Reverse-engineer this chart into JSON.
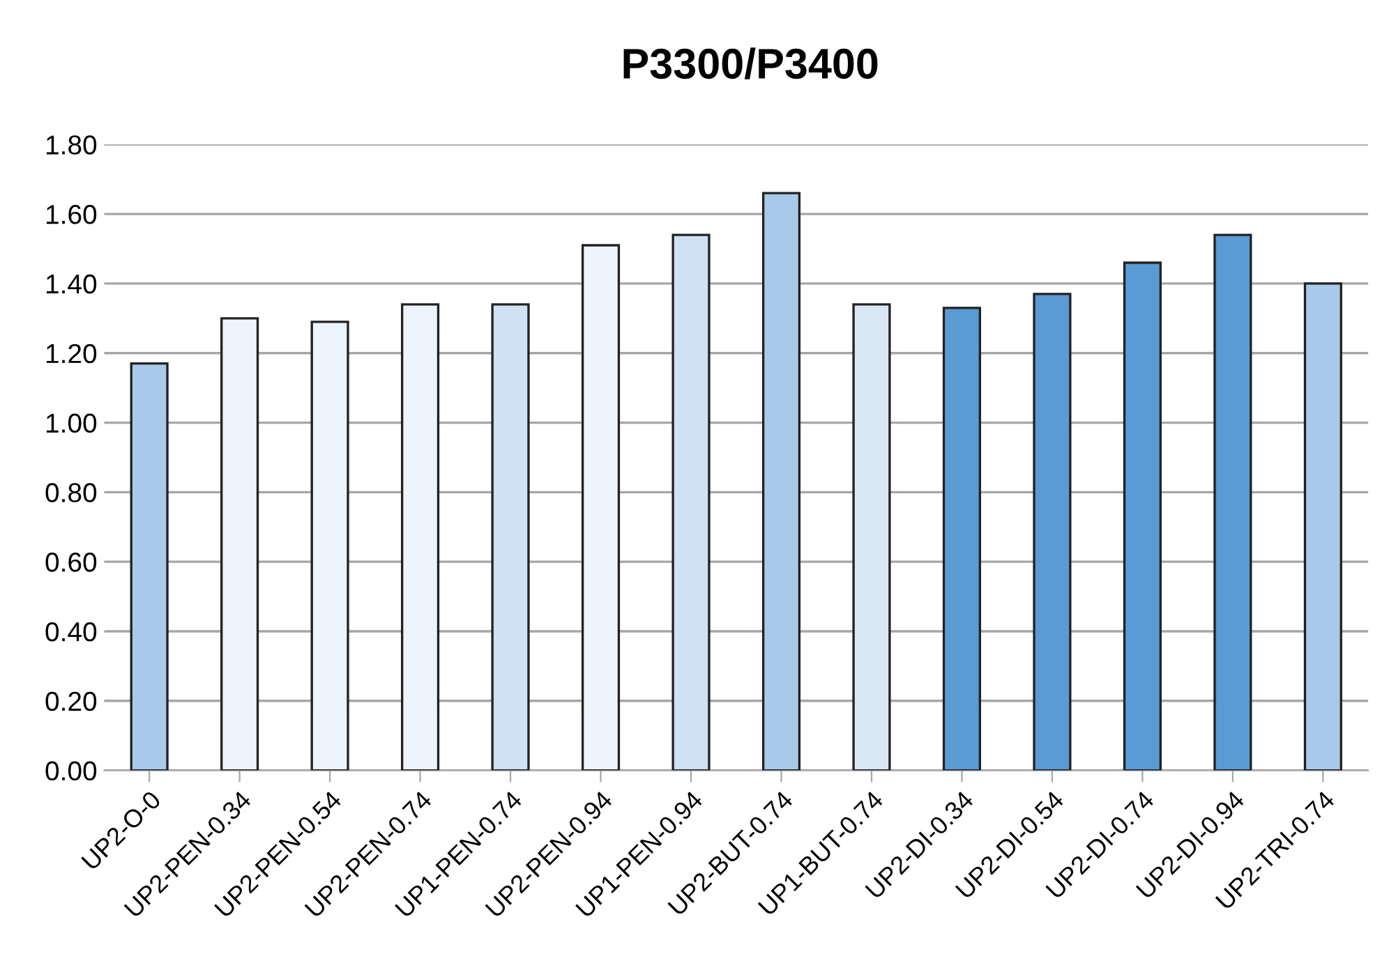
{
  "chart_data": {
    "type": "bar",
    "title": "P3300/P3400",
    "categories": [
      "UP2-O-0",
      "UP2-PEN-0.34",
      "UP2-PEN-0.54",
      "UP2-PEN-0.74",
      "UP1-PEN-0.74",
      "UP2-PEN-0.94",
      "UP1-PEN-0.94",
      "UP2-BUT-0.74",
      "UP1-BUT-0.74",
      "UP2-DI-0.34",
      "UP2-DI-0.54",
      "UP2-DI-0.74",
      "UP2-DI-0.94",
      "UP2-TRI-0.74"
    ],
    "values": [
      1.17,
      1.3,
      1.29,
      1.34,
      1.34,
      1.51,
      1.54,
      1.66,
      1.34,
      1.33,
      1.37,
      1.46,
      1.54,
      1.4
    ],
    "colors": [
      "#a9c9ea",
      "#eef4fb",
      "#eef4fb",
      "#eef4fb",
      "#cfe1f3",
      "#eef4fb",
      "#cfe1f3",
      "#a9c9ea",
      "#d9e7f5",
      "#5b9bd5",
      "#5b9bd5",
      "#5b9bd5",
      "#5b9bd5",
      "#a9c9ea"
    ],
    "ylim": [
      0,
      1.8
    ],
    "yticks": [
      {
        "value": 0,
        "label": "0.00"
      },
      {
        "value": 0.2,
        "label": "0.20"
      },
      {
        "value": 0.4,
        "label": "0.40"
      },
      {
        "value": 0.6,
        "label": "0.60"
      },
      {
        "value": 0.8,
        "label": "0.80"
      },
      {
        "value": 1.0,
        "label": "1.00"
      },
      {
        "value": 1.2,
        "label": "1.20"
      },
      {
        "value": 1.4,
        "label": "1.40"
      },
      {
        "value": 1.6,
        "label": "1.60"
      },
      {
        "value": 1.8,
        "label": "1.80"
      }
    ],
    "grid": "y",
    "legend": false
  }
}
